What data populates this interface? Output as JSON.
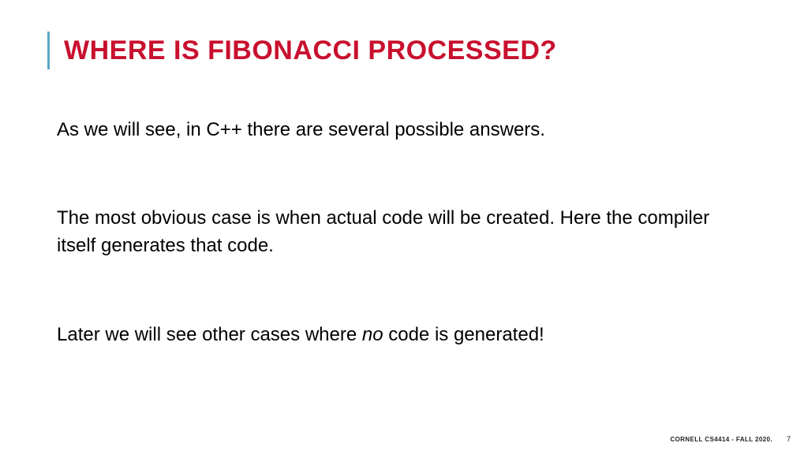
{
  "colors": {
    "title": "#c8102e",
    "accent_bar": "#5aa7c7",
    "background": "#ffffff",
    "body_text": "#000000",
    "footer_text": "#222222"
  },
  "typography": {
    "title_fontsize": 34,
    "title_weight": 900,
    "body_fontsize": 24,
    "body_weight": 400,
    "footer_fontsize": 8
  },
  "title": "WHERE IS FIBONACCI PROCESSED?",
  "paragraphs": {
    "p1": "As we will see, in C++ there are several possible answers.",
    "p2": "The most obvious case is when actual code will be created.  Here the compiler itself generates that code.",
    "p3_a": "Later we will see other cases where ",
    "p3_em": "no",
    "p3_b": " code is generated!"
  },
  "footer": {
    "course": "CORNELL CS4414 - FALL 2020.",
    "page": "7"
  }
}
